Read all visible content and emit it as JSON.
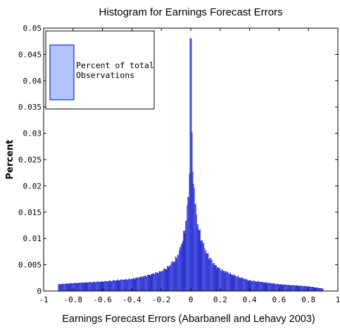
{
  "chart_data": {
    "type": "bar",
    "title": "Histogram for Earnings Forecast Errors",
    "xlabel": "Earnings Forecast Errors (Abarbanell and Lehavy 2003)",
    "ylabel": "Percent",
    "xlim": [
      -1,
      1
    ],
    "ylim": [
      0,
      0.05
    ],
    "x_ticks": [
      "-1",
      "-0.8",
      "-0.6",
      "-0.4",
      "-0.2",
      "0",
      "0.2",
      "0.4",
      "0.6",
      "0.8",
      "1"
    ],
    "y_ticks": [
      "0",
      "0.005",
      "0.01",
      "0.015",
      "0.02",
      "0.025",
      "0.03",
      "0.035",
      "0.04",
      "0.045",
      "0.05"
    ],
    "grid": false,
    "legend_position": "top-left",
    "bin_range": [
      -0.9,
      0.9
    ],
    "bin_width": 0.005,
    "series": [
      {
        "name": "Percent of total Observations",
        "legend_lines": [
          "Percent of total",
          "Observations"
        ],
        "color": "#0000c0",
        "fill": "#b0c4ff",
        "profile_x": [
          -0.9,
          -0.8,
          -0.6,
          -0.4,
          -0.3,
          -0.2,
          -0.15,
          -0.1,
          -0.075,
          -0.05,
          -0.04,
          -0.03,
          -0.02,
          -0.01,
          -0.005,
          0,
          0.005,
          0.01,
          0.02,
          0.03,
          0.04,
          0.05,
          0.075,
          0.1,
          0.15,
          0.2,
          0.3,
          0.4,
          0.6,
          0.8,
          0.9
        ],
        "profile_y": [
          0.0012,
          0.0014,
          0.0017,
          0.0022,
          0.0028,
          0.0036,
          0.0045,
          0.006,
          0.0075,
          0.01,
          0.0115,
          0.0135,
          0.016,
          0.02,
          0.024,
          0.048,
          0.03,
          0.025,
          0.02,
          0.016,
          0.0135,
          0.012,
          0.0095,
          0.0075,
          0.0052,
          0.004,
          0.0028,
          0.0019,
          0.0012,
          0.0008,
          0.0004
        ]
      }
    ]
  }
}
